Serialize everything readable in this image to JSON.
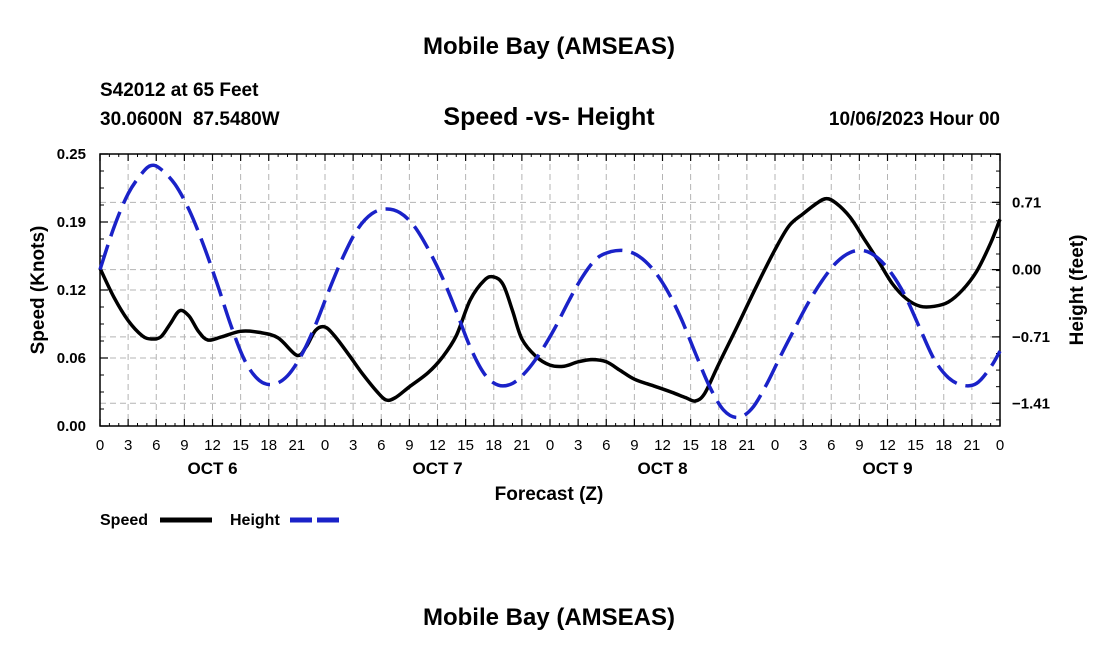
{
  "chart_data": {
    "type": "line",
    "title": "Mobile Bay (AMSEAS)",
    "footer_title": "Mobile Bay (AMSEAS)",
    "subtitle": "Speed -vs- Height",
    "station": "S42012 at 65 Feet",
    "coords": "30.0600N  87.5480W",
    "date_label": "10/06/2023 Hour 00",
    "xlabel": "Forecast (Z)",
    "ylabel_left": "Speed (Knots)",
    "ylabel_right": "Height (feet)",
    "x_range": [
      0,
      96
    ],
    "x_tick_labels": [
      "0",
      "3",
      "6",
      "9",
      "12",
      "15",
      "18",
      "21",
      "0",
      "3",
      "6",
      "9",
      "12",
      "15",
      "18",
      "21",
      "0",
      "3",
      "6",
      "9",
      "12",
      "15",
      "18",
      "21",
      "0",
      "3",
      "6",
      "9",
      "12",
      "15",
      "18",
      "21",
      "0"
    ],
    "day_labels": [
      {
        "x": 12,
        "label": "OCT 6"
      },
      {
        "x": 36,
        "label": "OCT 7"
      },
      {
        "x": 60,
        "label": "OCT 8"
      },
      {
        "x": 84,
        "label": "OCT 9"
      }
    ],
    "y_left": {
      "range": [
        0,
        0.25
      ],
      "ticks": [
        "0.00",
        "0.06",
        "0.12",
        "0.19",
        "0.25"
      ],
      "tick_values": [
        0,
        0.0625,
        0.125,
        0.1875,
        0.25
      ]
    },
    "y_right": {
      "range": [
        -1.65,
        1.22
      ],
      "ticks": [
        "−1.41",
        "−0.71",
        "0.00",
        "0.71"
      ],
      "tick_values": [
        -1.41,
        -0.71,
        0.0,
        0.71
      ]
    },
    "series": [
      {
        "name": "Speed",
        "axis": "left",
        "color": "#000000",
        "style": "solid",
        "points": [
          [
            0,
            0.145
          ],
          [
            1.5,
            0.118
          ],
          [
            3,
            0.097
          ],
          [
            4.5,
            0.083
          ],
          [
            5.5,
            0.08
          ],
          [
            6.5,
            0.082
          ],
          [
            7.5,
            0.094
          ],
          [
            8.5,
            0.106
          ],
          [
            9.5,
            0.101
          ],
          [
            10.5,
            0.087
          ],
          [
            11.5,
            0.079
          ],
          [
            13,
            0.082
          ],
          [
            15,
            0.087
          ],
          [
            17,
            0.086
          ],
          [
            19,
            0.081
          ],
          [
            21,
            0.065
          ],
          [
            22,
            0.073
          ],
          [
            23,
            0.088
          ],
          [
            24,
            0.091
          ],
          [
            25,
            0.083
          ],
          [
            26.5,
            0.066
          ],
          [
            28,
            0.048
          ],
          [
            29.5,
            0.032
          ],
          [
            30.5,
            0.024
          ],
          [
            31.5,
            0.026
          ],
          [
            33,
            0.036
          ],
          [
            35,
            0.049
          ],
          [
            36.5,
            0.063
          ],
          [
            38,
            0.083
          ],
          [
            39.5,
            0.116
          ],
          [
            41,
            0.134
          ],
          [
            42,
            0.137
          ],
          [
            43,
            0.13
          ],
          [
            44,
            0.106
          ],
          [
            45,
            0.08
          ],
          [
            46.5,
            0.064
          ],
          [
            48,
            0.056
          ],
          [
            49.5,
            0.055
          ],
          [
            51,
            0.059
          ],
          [
            52.5,
            0.061
          ],
          [
            54,
            0.059
          ],
          [
            55.5,
            0.051
          ],
          [
            57,
            0.043
          ],
          [
            59,
            0.037
          ],
          [
            61,
            0.031
          ],
          [
            62.5,
            0.026
          ],
          [
            63.5,
            0.023
          ],
          [
            64.5,
            0.03
          ],
          [
            66,
            0.057
          ],
          [
            68,
            0.092
          ],
          [
            70,
            0.128
          ],
          [
            72,
            0.162
          ],
          [
            73.5,
            0.184
          ],
          [
            75,
            0.195
          ],
          [
            76.5,
            0.205
          ],
          [
            77.5,
            0.209
          ],
          [
            78.5,
            0.205
          ],
          [
            80,
            0.192
          ],
          [
            81.5,
            0.172
          ],
          [
            83,
            0.152
          ],
          [
            84.5,
            0.131
          ],
          [
            86,
            0.117
          ],
          [
            87.5,
            0.11
          ],
          [
            89,
            0.11
          ],
          [
            90.5,
            0.114
          ],
          [
            92,
            0.125
          ],
          [
            93.5,
            0.142
          ],
          [
            95,
            0.168
          ],
          [
            96,
            0.19
          ]
        ]
      },
      {
        "name": "Height",
        "axis": "right",
        "color": "#1a22c8",
        "style": "dashed",
        "points": [
          [
            0,
            0.0
          ],
          [
            1.5,
            0.45
          ],
          [
            3,
            0.8
          ],
          [
            4.5,
            1.02
          ],
          [
            5.5,
            1.1
          ],
          [
            6.5,
            1.06
          ],
          [
            8,
            0.9
          ],
          [
            9.5,
            0.63
          ],
          [
            11,
            0.27
          ],
          [
            12.5,
            -0.15
          ],
          [
            14,
            -0.6
          ],
          [
            15.5,
            -0.97
          ],
          [
            17,
            -1.17
          ],
          [
            18.5,
            -1.21
          ],
          [
            20,
            -1.12
          ],
          [
            21.5,
            -0.9
          ],
          [
            23,
            -0.58
          ],
          [
            24.5,
            -0.2
          ],
          [
            26,
            0.15
          ],
          [
            27.5,
            0.43
          ],
          [
            29,
            0.59
          ],
          [
            30.5,
            0.64
          ],
          [
            32,
            0.6
          ],
          [
            33.5,
            0.46
          ],
          [
            35,
            0.22
          ],
          [
            36.5,
            -0.08
          ],
          [
            38,
            -0.44
          ],
          [
            39.5,
            -0.82
          ],
          [
            41,
            -1.1
          ],
          [
            42.5,
            -1.22
          ],
          [
            44,
            -1.2
          ],
          [
            45.5,
            -1.07
          ],
          [
            47,
            -0.87
          ],
          [
            48.5,
            -0.62
          ],
          [
            50,
            -0.33
          ],
          [
            51.5,
            -0.07
          ],
          [
            53,
            0.12
          ],
          [
            54.5,
            0.19
          ],
          [
            56,
            0.2
          ],
          [
            57.5,
            0.14
          ],
          [
            59,
            0.0
          ],
          [
            60.5,
            -0.22
          ],
          [
            62,
            -0.52
          ],
          [
            63.5,
            -0.88
          ],
          [
            65,
            -1.23
          ],
          [
            66.5,
            -1.48
          ],
          [
            68,
            -1.56
          ],
          [
            69.5,
            -1.47
          ],
          [
            71,
            -1.23
          ],
          [
            72.5,
            -0.93
          ],
          [
            74,
            -0.64
          ],
          [
            75.5,
            -0.36
          ],
          [
            77,
            -0.12
          ],
          [
            78.5,
            0.07
          ],
          [
            80,
            0.18
          ],
          [
            81.5,
            0.2
          ],
          [
            83,
            0.12
          ],
          [
            84.5,
            -0.05
          ],
          [
            86,
            -0.3
          ],
          [
            87.5,
            -0.63
          ],
          [
            89,
            -0.95
          ],
          [
            90.5,
            -1.14
          ],
          [
            92,
            -1.22
          ],
          [
            93.5,
            -1.2
          ],
          [
            95,
            -1.03
          ],
          [
            96,
            -0.86
          ]
        ]
      }
    ],
    "legend": [
      {
        "label": "Speed",
        "color": "#000000",
        "style": "solid"
      },
      {
        "label": "Height",
        "color": "#1a22c8",
        "style": "dashed"
      }
    ],
    "grid": true
  }
}
